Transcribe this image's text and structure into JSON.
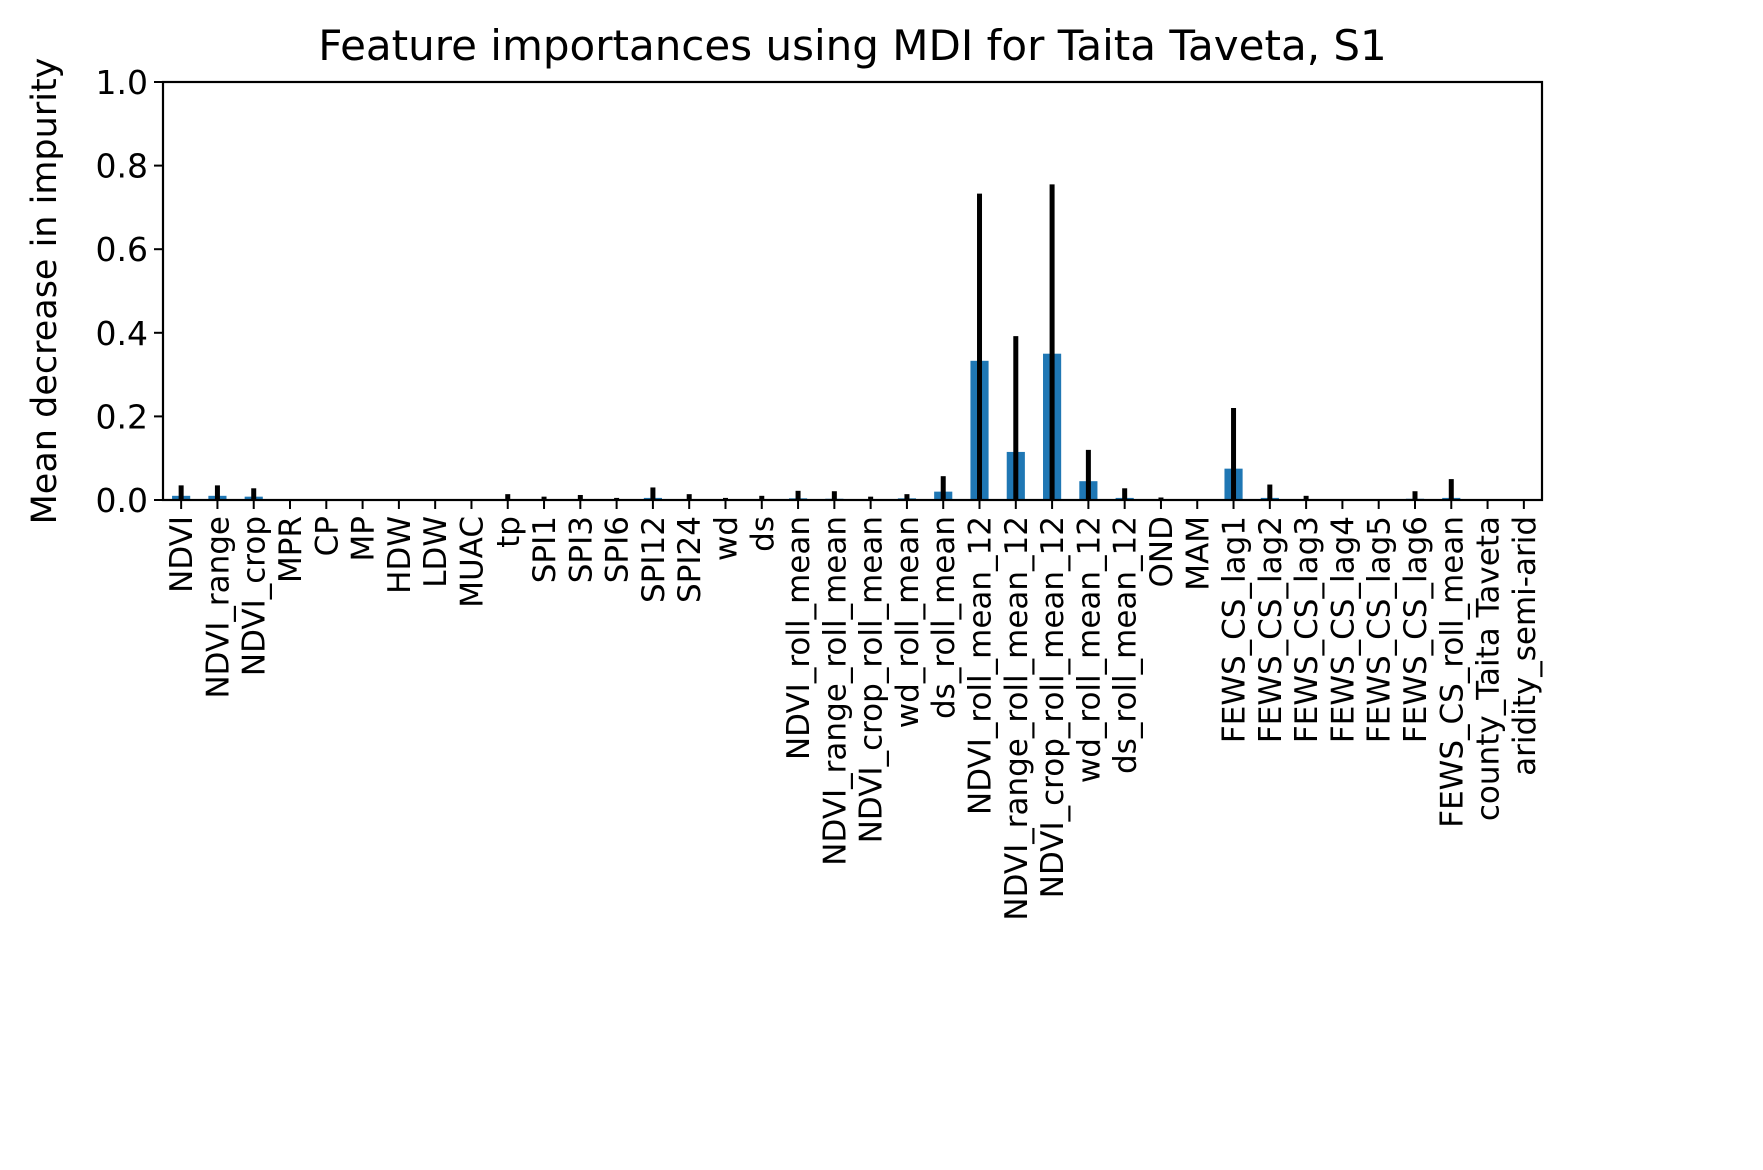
{
  "chart_data": {
    "type": "bar",
    "title": "Feature importances using MDI for Taita Taveta, S1",
    "xlabel": "",
    "ylabel": "Mean decrease in impurity",
    "ylim": [
      0,
      1.0
    ],
    "yticks": [
      "0.0",
      "0.2",
      "0.4",
      "0.6",
      "0.8",
      "1.0"
    ],
    "grid": false,
    "legend": "none",
    "bar_color": "#1f77b4",
    "error_color": "#000000",
    "categories": [
      "NDVI",
      "NDVI_range",
      "NDVI_crop",
      "MPR",
      "CP",
      "MP",
      "HDW",
      "LDW",
      "MUAC",
      "tp",
      "SPI1",
      "SPI3",
      "SPI6",
      "SPI12",
      "SPI24",
      "wd",
      "ds",
      "NDVI_roll_mean",
      "NDVI_range_roll_mean",
      "NDVI_crop_roll_mean",
      "wd_roll_mean",
      "ds_roll_mean",
      "NDVI_roll_mean_12",
      "NDVI_range_roll_mean_12",
      "NDVI_crop_roll_mean_12",
      "wd_roll_mean_12",
      "ds_roll_mean_12",
      "OND",
      "MAM",
      "FEWS_CS_lag1",
      "FEWS_CS_lag2",
      "FEWS_CS_lag3",
      "FEWS_CS_lag4",
      "FEWS_CS_lag5",
      "FEWS_CS_lag6",
      "FEWS_CS_roll_mean",
      "county_Taita Taveta",
      "aridity_semi-arid"
    ],
    "values": [
      0.01,
      0.01,
      0.008,
      0.0,
      0.0,
      0.0,
      0.0,
      0.0,
      0.0,
      0.002,
      0.002,
      0.002,
      0.001,
      0.005,
      0.002,
      0.001,
      0.002,
      0.004,
      0.003,
      0.002,
      0.004,
      0.02,
      0.333,
      0.115,
      0.35,
      0.045,
      0.005,
      0.001,
      0.0,
      0.075,
      0.005,
      0.002,
      0.0,
      0.0,
      0.003,
      0.005,
      0.0,
      0.0
    ],
    "errors": [
      0.025,
      0.025,
      0.02,
      0.0,
      0.0,
      0.0,
      0.0,
      0.0,
      0.0,
      0.012,
      0.006,
      0.01,
      0.004,
      0.025,
      0.012,
      0.004,
      0.008,
      0.018,
      0.018,
      0.006,
      0.01,
      0.037,
      0.4,
      0.277,
      0.405,
      0.075,
      0.023,
      0.005,
      0.0,
      0.145,
      0.032,
      0.008,
      0.0,
      0.0,
      0.018,
      0.045,
      0.0,
      0.0
    ]
  }
}
